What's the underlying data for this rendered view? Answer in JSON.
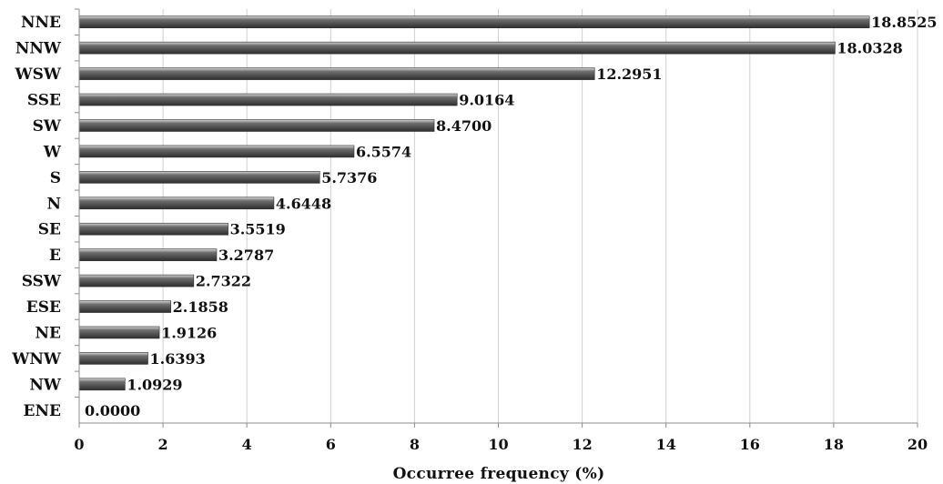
{
  "chart_data": {
    "type": "bar",
    "orientation": "horizontal",
    "categories": [
      "NNE",
      "NNW",
      "WSW",
      "SSE",
      "SW",
      "W",
      "S",
      "N",
      "SE",
      "E",
      "SSW",
      "ESE",
      "NE",
      "WNW",
      "NW",
      "ENE"
    ],
    "values": [
      18.8525,
      18.0328,
      12.2951,
      9.0164,
      8.47,
      6.5574,
      5.7376,
      4.6448,
      3.5519,
      3.2787,
      2.7322,
      2.1858,
      1.9126,
      1.6393,
      1.0929,
      0.0
    ],
    "value_labels": [
      "18.8525",
      "18.0328",
      "12.2951",
      "9.0164",
      "8.4700",
      "6.5574",
      "5.7376",
      "4.6448",
      "3.5519",
      "3.2787",
      "2.7322",
      "2.1858",
      "1.9126",
      "1.6393",
      "1.0929",
      "0.0000"
    ],
    "xlabel": "Occurree frequency (%)",
    "ylabel": "",
    "xlim": [
      0,
      20
    ],
    "xticks": [
      "0",
      "2",
      "4",
      "6",
      "8",
      "10",
      "12",
      "14",
      "16",
      "18",
      "20"
    ],
    "grid": "vertical",
    "legend": "none",
    "colors": {
      "bar": "#6e6e6e",
      "bar_highlight": "#d9d9d9",
      "bar_shadow": "#2e2e2e",
      "grid": "#d0d0d0",
      "axis": "#8c8c8c",
      "text": "#111111"
    }
  }
}
